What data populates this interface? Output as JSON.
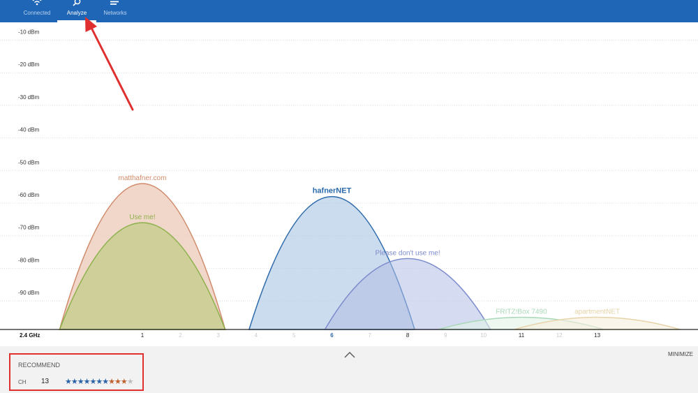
{
  "nav": {
    "items": [
      {
        "label": "Connected",
        "icon": "wifi-icon",
        "active": false
      },
      {
        "label": "Analyze",
        "icon": "analyze-search-icon",
        "active": true
      },
      {
        "label": "Networks",
        "icon": "networks-list-icon",
        "active": false
      }
    ]
  },
  "chart_data": {
    "type": "area",
    "band_label": "2.4 GHz",
    "y_ticks": [
      "-10 dBm",
      "-20 dBm",
      "-30 dBm",
      "-40 dBm",
      "-50 dBm",
      "-60 dBm",
      "-70 dBm",
      "-80 dBm",
      "-90 dBm"
    ],
    "ylim": [
      -100,
      -5
    ],
    "x_ticks": [
      "1",
      "2",
      "3",
      "4",
      "5",
      "6",
      "7",
      "8",
      "9",
      "10",
      "11",
      "12",
      "13"
    ],
    "xlim": [
      -0.5,
      14.5
    ],
    "grid": true,
    "series": [
      {
        "name": "matthafner.com",
        "center": 1,
        "signal_dbm": -54,
        "color": "#d08a6a",
        "fill": "#ecc9b8",
        "fill_opacity": 0.75,
        "label_bold": false,
        "dim": false
      },
      {
        "name": "Use me!",
        "center": 1,
        "signal_dbm": -66,
        "color": "#8db14c",
        "fill": "#c7cd8c",
        "fill_opacity": 0.8,
        "label_bold": false,
        "dim": false
      },
      {
        "name": "hafnerNET",
        "center": 6,
        "signal_dbm": -58,
        "color": "#2c6aab",
        "fill": "#a9c4e2",
        "fill_opacity": 0.6,
        "label_bold": true,
        "dim": false
      },
      {
        "name": "Please don't use me!",
        "center": 8,
        "signal_dbm": -77,
        "color": "#7d8ccc",
        "fill": "#b3bde6",
        "fill_opacity": 0.55,
        "label_bold": false,
        "dim": false
      },
      {
        "name": "FRITZ!Box 7490",
        "center": 11,
        "signal_dbm": -95,
        "color": "#a8d8b8",
        "fill": "#e3f3e8",
        "fill_opacity": 0.6,
        "label_bold": false,
        "dim": true
      },
      {
        "name": "apartmentNET",
        "center": 13,
        "signal_dbm": -95,
        "color": "#e6d3a8",
        "fill": "#f6efdd",
        "fill_opacity": 0.6,
        "label_bold": false,
        "dim": true
      }
    ],
    "active_channels": [
      "1",
      "6",
      "8",
      "11",
      "13"
    ],
    "highlighted_channel": "6"
  },
  "recommend": {
    "label": "RECOMMEND",
    "ch_label": "CH",
    "channel": "13",
    "rating_stars": [
      {
        "glyph": "★",
        "color": "#2b63a6"
      },
      {
        "glyph": "★",
        "color": "#2b63a6"
      },
      {
        "glyph": "★",
        "color": "#2b63a6"
      },
      {
        "glyph": "★",
        "color": "#2b63a6"
      },
      {
        "glyph": "★",
        "color": "#2b63a6"
      },
      {
        "glyph": "★",
        "color": "#2b63a6"
      },
      {
        "glyph": "★",
        "color": "#2b63a6"
      },
      {
        "glyph": "★",
        "color": "#c0622e"
      },
      {
        "glyph": "★",
        "color": "#c0622e"
      },
      {
        "glyph": "★",
        "color": "#c0622e"
      },
      {
        "glyph": "★",
        "color": "#bdbdbd"
      }
    ]
  },
  "controls": {
    "minimize": "MINIMIZE",
    "expand_icon": "chevron-up-icon"
  },
  "annotations": {
    "arrow_color": "#e02f2f",
    "box_color": "#e02f2f"
  },
  "theme": {
    "topbar": "#1f66b7",
    "accent_text": "#2c6aab"
  }
}
